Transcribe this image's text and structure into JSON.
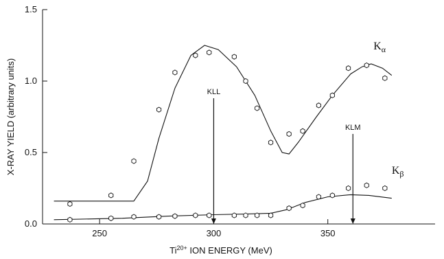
{
  "chart_data": {
    "type": "scatter",
    "xlabel": {
      "prefix": "Ti",
      "superscript": "20+",
      "rest": " ION ENERGY (MeV)"
    },
    "ylabel": "X-RAY YIELD (arbitrary units)",
    "xlim": [
      225,
      397
    ],
    "ylim": [
      0,
      1.5
    ],
    "x_ticks": [
      250,
      300,
      350
    ],
    "x_tick_labels": [
      "250",
      "300",
      "350"
    ],
    "y_ticks": [
      0.0,
      0.5,
      1.0,
      1.5
    ],
    "y_tick_labels": [
      "0.0",
      "0.5",
      "1.0",
      "1.5"
    ],
    "grid": false,
    "series": [
      {
        "name": "Kα",
        "label_main": "K",
        "label_sub": "α",
        "points": [
          [
            237,
            0.14
          ],
          [
            255,
            0.2
          ],
          [
            265,
            0.44
          ],
          [
            276,
            0.8
          ],
          [
            283,
            1.06
          ],
          [
            292,
            1.18
          ],
          [
            298,
            1.2
          ],
          [
            309,
            1.17
          ],
          [
            314,
            1.0
          ],
          [
            319,
            0.81
          ],
          [
            325,
            0.57
          ],
          [
            333,
            0.63
          ],
          [
            339,
            0.65
          ],
          [
            346,
            0.83
          ],
          [
            352,
            0.9
          ],
          [
            359,
            1.09
          ],
          [
            367,
            1.11
          ],
          [
            375,
            1.02
          ]
        ],
        "fit": [
          [
            230,
            0.16
          ],
          [
            265,
            0.16
          ],
          [
            271,
            0.3
          ],
          [
            276,
            0.6
          ],
          [
            283,
            0.95
          ],
          [
            290,
            1.18
          ],
          [
            296,
            1.25
          ],
          [
            302,
            1.22
          ],
          [
            310,
            1.1
          ],
          [
            318,
            0.9
          ],
          [
            325,
            0.65
          ],
          [
            330,
            0.5
          ],
          [
            333,
            0.49
          ],
          [
            337,
            0.57
          ],
          [
            345,
            0.75
          ],
          [
            352,
            0.9
          ],
          [
            360,
            1.05
          ],
          [
            365,
            1.1
          ],
          [
            369,
            1.12
          ],
          [
            374,
            1.09
          ],
          [
            378,
            1.04
          ]
        ]
      },
      {
        "name": "Kβ",
        "label_main": "K",
        "label_sub": "β",
        "points": [
          [
            237,
            0.03
          ],
          [
            255,
            0.04
          ],
          [
            265,
            0.05
          ],
          [
            276,
            0.05
          ],
          [
            283,
            0.055
          ],
          [
            292,
            0.06
          ],
          [
            298,
            0.06
          ],
          [
            309,
            0.06
          ],
          [
            314,
            0.06
          ],
          [
            319,
            0.06
          ],
          [
            325,
            0.06
          ],
          [
            333,
            0.11
          ],
          [
            339,
            0.13
          ],
          [
            346,
            0.19
          ],
          [
            352,
            0.2
          ],
          [
            359,
            0.25
          ],
          [
            367,
            0.27
          ],
          [
            375,
            0.25
          ]
        ],
        "fit": [
          [
            230,
            0.03
          ],
          [
            260,
            0.04
          ],
          [
            280,
            0.055
          ],
          [
            300,
            0.065
          ],
          [
            315,
            0.07
          ],
          [
            325,
            0.075
          ],
          [
            332,
            0.1
          ],
          [
            340,
            0.15
          ],
          [
            350,
            0.19
          ],
          [
            360,
            0.205
          ],
          [
            368,
            0.2
          ],
          [
            378,
            0.18
          ]
        ]
      }
    ],
    "annotations": [
      {
        "label": "KLL",
        "x": 300,
        "y_from": 0.88,
        "y_to": 0.0
      },
      {
        "label": "KLM",
        "x": 361,
        "y_from": 0.63,
        "y_to": 0.0
      }
    ]
  }
}
